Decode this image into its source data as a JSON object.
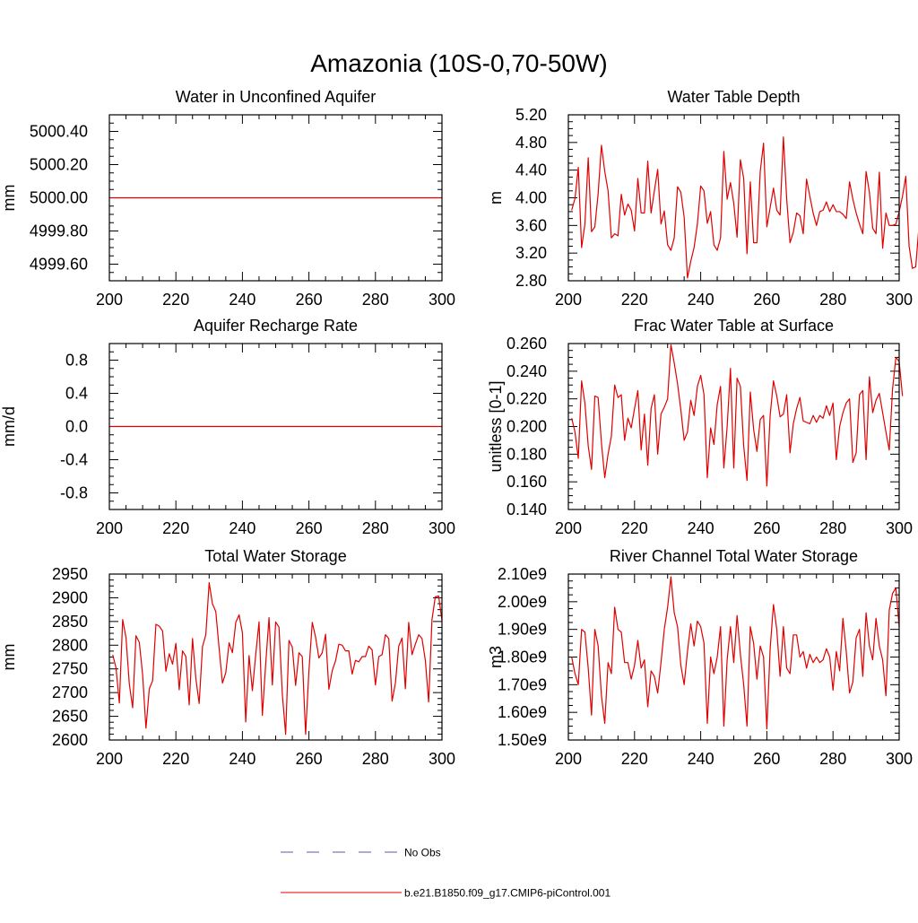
{
  "main_title": "Amazonia (10S-0,70-50W)",
  "legend": [
    {
      "label": "No Obs",
      "color": "#5a5aa8",
      "style": "dashed"
    },
    {
      "label": "b.e21.B1850.f09_g17.CMIP6-piControl.001",
      "color": "#e00000",
      "style": "solid"
    }
  ],
  "chart_data": [
    {
      "id": "p1",
      "type": "line",
      "title": "Water in Unconfined Aquifer",
      "ylabel": "mm",
      "xlabel": "",
      "xlim": [
        200,
        300
      ],
      "ylim": [
        4999.5,
        5000.5
      ],
      "xticks": [
        200,
        220,
        240,
        260,
        280,
        300
      ],
      "xtick_labels": [
        "200",
        "220",
        "240",
        "260",
        "280",
        "300"
      ],
      "yticks": [
        4999.6,
        4999.8,
        5000.0,
        5000.2,
        5000.4
      ],
      "ytick_labels": [
        "4999.60",
        "4999.80",
        "5000.00",
        "5000.20",
        "5000.40"
      ],
      "series": [
        {
          "name": "b.e21.B1850.f09_g17.CMIP6-piControl.001",
          "x0": 200,
          "dx": 1,
          "values": [
            5000.0,
            5000.0
          ]
        }
      ],
      "x": [
        200,
        300
      ]
    },
    {
      "id": "p2",
      "type": "line",
      "title": "Water Table Depth",
      "ylabel": "m",
      "xlabel": "",
      "xlim": [
        200,
        300
      ],
      "ylim": [
        2.8,
        5.2
      ],
      "xticks": [
        200,
        220,
        240,
        260,
        280,
        300
      ],
      "xtick_labels": [
        "200",
        "220",
        "240",
        "260",
        "280",
        "300"
      ],
      "yticks": [
        2.8,
        3.2,
        3.6,
        4.0,
        4.4,
        4.8,
        5.2
      ],
      "ytick_labels": [
        "2.80",
        "3.20",
        "3.60",
        "4.00",
        "4.40",
        "4.80",
        "5.20"
      ],
      "x0": 201,
      "dx": 1,
      "series": [
        {
          "name": "b.e21.B1850.f09_g17.CMIP6-piControl.001",
          "values": [
            3.82,
            3.99,
            4.44,
            3.28,
            3.62,
            4.58,
            3.51,
            3.58,
            4.06,
            4.76,
            4.38,
            4.1,
            3.42,
            3.48,
            3.45,
            4.05,
            3.75,
            3.91,
            3.82,
            3.52,
            4.28,
            3.78,
            3.78,
            4.53,
            3.78,
            4.1,
            4.41,
            3.62,
            3.81,
            3.32,
            3.24,
            3.42,
            4.16,
            4.08,
            3.72,
            2.84,
            3.08,
            3.28,
            3.62,
            4.17,
            4.1,
            3.63,
            3.8,
            3.32,
            3.24,
            3.42,
            4.67,
            3.98,
            4.22,
            3.92,
            3.43,
            4.55,
            4.28,
            3.19,
            4.23,
            3.35,
            3.35,
            4.38,
            4.79,
            3.58,
            3.86,
            4.14,
            3.82,
            3.75,
            4.88,
            3.98,
            3.35,
            3.5,
            3.78,
            3.74,
            3.48,
            4.27,
            4.02,
            3.78,
            3.6,
            3.8,
            3.82,
            3.94,
            3.8,
            3.9,
            3.8,
            3.8,
            3.76,
            3.7,
            4.23,
            3.98,
            3.78,
            3.62,
            3.48,
            4.38,
            4.08,
            3.56,
            3.48,
            4.37,
            3.27,
            3.78,
            3.6,
            3.6,
            3.62,
            3.8,
            4.02,
            4.31,
            3.3,
            2.98,
            3.0,
            3.6
          ]
        }
      ]
    },
    {
      "id": "p3",
      "type": "line",
      "title": "Aquifer Recharge Rate",
      "ylabel": "mm/d",
      "xlabel": "",
      "xlim": [
        200,
        300
      ],
      "ylim": [
        -1.0,
        1.0
      ],
      "xticks": [
        200,
        220,
        240,
        260,
        280,
        300
      ],
      "xtick_labels": [
        "200",
        "220",
        "240",
        "260",
        "280",
        "300"
      ],
      "yticks": [
        -0.8,
        -0.4,
        0.0,
        0.4,
        0.8
      ],
      "ytick_labels": [
        "-0.8",
        "-0.4",
        "0.0",
        "0.4",
        "0.8"
      ],
      "series": [
        {
          "name": "b.e21.B1850.f09_g17.CMIP6-piControl.001",
          "values": [
            0.0,
            0.0
          ]
        }
      ],
      "x": [
        200,
        300
      ]
    },
    {
      "id": "p4",
      "type": "line",
      "title": "Frac Water Table at Surface",
      "ylabel": "unitless [0-1]",
      "xlabel": "",
      "xlim": [
        200,
        300
      ],
      "ylim": [
        0.14,
        0.26
      ],
      "xticks": [
        200,
        220,
        240,
        260,
        280,
        300
      ],
      "xtick_labels": [
        "200",
        "220",
        "240",
        "260",
        "280",
        "300"
      ],
      "yticks": [
        0.14,
        0.16,
        0.18,
        0.2,
        0.22,
        0.24,
        0.26
      ],
      "ytick_labels": [
        "0.140",
        "0.160",
        "0.180",
        "0.200",
        "0.220",
        "0.240",
        "0.260"
      ],
      "x0": 201,
      "dx": 1,
      "series": [
        {
          "name": "b.e21.B1850.f09_g17.CMIP6-piControl.001",
          "values": [
            0.206,
            0.196,
            0.177,
            0.233,
            0.217,
            0.186,
            0.169,
            0.222,
            0.221,
            0.188,
            0.163,
            0.18,
            0.193,
            0.23,
            0.221,
            0.223,
            0.19,
            0.206,
            0.199,
            0.213,
            0.226,
            0.183,
            0.209,
            0.172,
            0.213,
            0.223,
            0.18,
            0.209,
            0.214,
            0.22,
            0.259,
            0.246,
            0.231,
            0.212,
            0.19,
            0.196,
            0.219,
            0.208,
            0.229,
            0.237,
            0.223,
            0.163,
            0.199,
            0.187,
            0.216,
            0.229,
            0.17,
            0.2,
            0.242,
            0.17,
            0.235,
            0.229,
            0.186,
            0.161,
            0.225,
            0.198,
            0.182,
            0.205,
            0.208,
            0.157,
            0.208,
            0.233,
            0.222,
            0.207,
            0.209,
            0.223,
            0.181,
            0.202,
            0.213,
            0.221,
            0.204,
            0.203,
            0.202,
            0.208,
            0.203,
            0.208,
            0.206,
            0.215,
            0.208,
            0.217,
            0.176,
            0.2,
            0.21,
            0.217,
            0.22,
            0.174,
            0.181,
            0.223,
            0.226,
            0.176,
            0.236,
            0.21,
            0.219,
            0.224,
            0.21,
            0.196,
            0.183,
            0.227,
            0.25,
            0.247,
            0.222
          ]
        }
      ]
    },
    {
      "id": "p5",
      "type": "line",
      "title": "Total Water Storage",
      "ylabel": "mm",
      "xlabel": "",
      "xlim": [
        200,
        300
      ],
      "ylim": [
        2600,
        2950
      ],
      "xticks": [
        200,
        220,
        240,
        260,
        280,
        300
      ],
      "xtick_labels": [
        "200",
        "220",
        "240",
        "260",
        "280",
        "300"
      ],
      "yticks": [
        2600,
        2650,
        2700,
        2750,
        2800,
        2850,
        2900,
        2950
      ],
      "ytick_labels": [
        "2600",
        "2650",
        "2700",
        "2750",
        "2800",
        "2850",
        "2900",
        "2950"
      ],
      "x0": 201,
      "dx": 1,
      "series": [
        {
          "name": "b.e21.B1850.f09_g17.CMIP6-piControl.001",
          "values": [
            2780,
            2752,
            2678,
            2854,
            2816,
            2718,
            2668,
            2820,
            2806,
            2738,
            2625,
            2708,
            2725,
            2844,
            2840,
            2830,
            2745,
            2782,
            2760,
            2804,
            2706,
            2788,
            2776,
            2674,
            2814,
            2730,
            2677,
            2797,
            2822,
            2932,
            2887,
            2871,
            2793,
            2720,
            2742,
            2805,
            2784,
            2848,
            2864,
            2826,
            2638,
            2778,
            2704,
            2780,
            2849,
            2652,
            2760,
            2858,
            2716,
            2849,
            2838,
            2697,
            2612,
            2810,
            2796,
            2715,
            2784,
            2776,
            2612,
            2746,
            2848,
            2817,
            2773,
            2784,
            2823,
            2707,
            2746,
            2767,
            2802,
            2800,
            2788,
            2788,
            2739,
            2768,
            2765,
            2776,
            2776,
            2798,
            2790,
            2716,
            2776,
            2780,
            2822,
            2814,
            2682,
            2720,
            2798,
            2815,
            2708,
            2848,
            2780,
            2802,
            2822,
            2814,
            2768,
            2680,
            2854,
            2902,
            2904,
            2852
          ]
        }
      ]
    },
    {
      "id": "p6",
      "type": "line",
      "title": "River Channel Total Water Storage",
      "ylabel": "m3",
      "xlabel": "",
      "xlim": [
        200,
        300
      ],
      "ylim": [
        1.5,
        2.1
      ],
      "xticks": [
        200,
        220,
        240,
        260,
        280,
        300
      ],
      "xtick_labels": [
        "200",
        "220",
        "240",
        "260",
        "280",
        "300"
      ],
      "yticks": [
        1.5,
        1.6,
        1.7,
        1.8,
        1.9,
        2.0,
        2.1
      ],
      "ytick_labels": [
        "1.50e9",
        "1.60e9",
        "1.70e9",
        "1.80e9",
        "1.90e9",
        "2.00e9",
        "2.10e9"
      ],
      "y_scale_note": "values in units of 1e9 m3",
      "x0": 201,
      "dx": 1,
      "series": [
        {
          "name": "b.e21.B1850.f09_g17.CMIP6-piControl.001",
          "values": [
            1.8,
            1.74,
            1.7,
            1.9,
            1.89,
            1.76,
            1.59,
            1.9,
            1.84,
            1.66,
            1.56,
            1.78,
            1.74,
            1.98,
            1.9,
            1.89,
            1.78,
            1.78,
            1.72,
            1.77,
            1.86,
            1.76,
            1.79,
            1.62,
            1.75,
            1.73,
            1.67,
            1.78,
            1.9,
            1.98,
            2.09,
            1.96,
            1.91,
            1.77,
            1.7,
            1.82,
            1.92,
            1.84,
            1.93,
            1.91,
            1.85,
            1.56,
            1.8,
            1.74,
            1.8,
            1.91,
            1.55,
            1.79,
            1.91,
            1.78,
            1.95,
            1.81,
            1.7,
            1.55,
            1.91,
            1.85,
            1.72,
            1.84,
            1.8,
            1.54,
            1.83,
            1.99,
            1.9,
            1.73,
            1.91,
            1.76,
            1.74,
            1.88,
            1.88,
            1.8,
            1.82,
            1.76,
            1.81,
            1.78,
            1.8,
            1.78,
            1.79,
            1.83,
            1.8,
            1.68,
            1.82,
            1.75,
            1.94,
            1.82,
            1.67,
            1.71,
            1.87,
            1.9,
            1.73,
            1.96,
            1.84,
            1.79,
            1.94,
            1.84,
            1.79,
            1.66,
            1.97,
            2.03,
            2.05,
            1.91
          ]
        }
      ]
    }
  ]
}
